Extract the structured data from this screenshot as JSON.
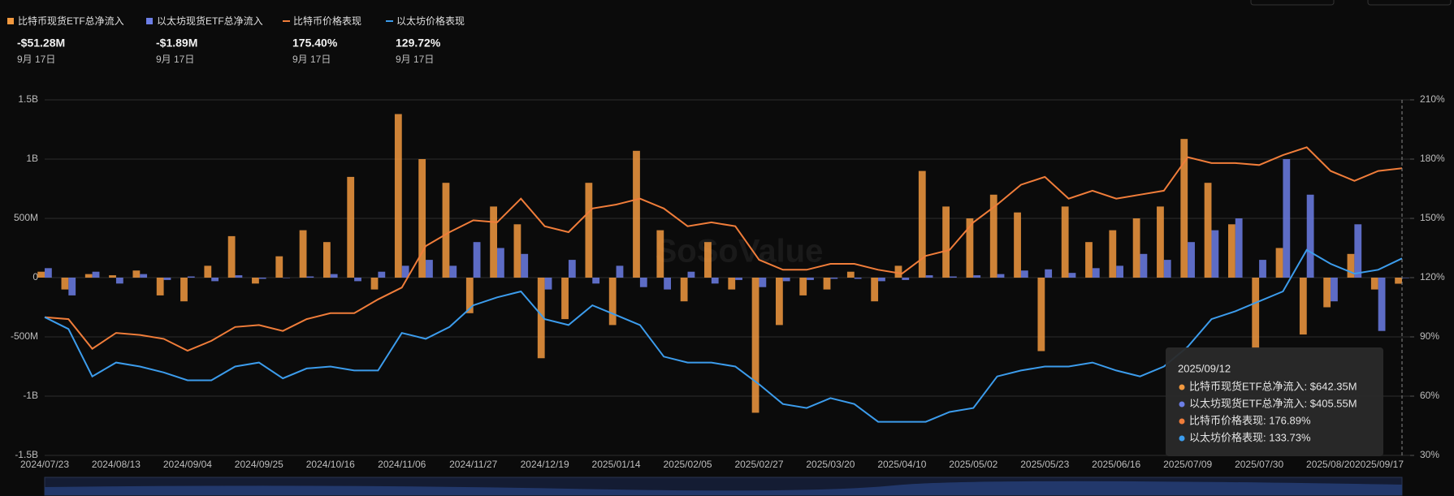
{
  "chart_data": {
    "type": "bar",
    "watermark": "SoSoValue",
    "categories": [
      "2024/07/23",
      null,
      null,
      "2024/08/13",
      null,
      null,
      "2024/09/04",
      null,
      null,
      "2024/09/25",
      null,
      null,
      "2024/10/16",
      null,
      null,
      "2024/11/06",
      null,
      null,
      "2024/11/27",
      null,
      null,
      "2024/12/19",
      null,
      null,
      "2025/01/14",
      null,
      null,
      "2025/02/05",
      null,
      null,
      "2025/02/27",
      null,
      null,
      "2025/03/20",
      null,
      null,
      "2025/04/10",
      null,
      null,
      "2025/05/02",
      null,
      null,
      "2025/05/23",
      null,
      null,
      "2025/06/16",
      null,
      null,
      "2025/07/09",
      null,
      null,
      "2025/07/30",
      null,
      null,
      "2025/08/20",
      null,
      null,
      "2025/09/17"
    ],
    "ylim": [
      -1500000000.0,
      1500000000.0
    ],
    "yticks": [
      {
        "value": 1500000000.0,
        "label": "1.5B"
      },
      {
        "value": 1000000000.0,
        "label": "1B"
      },
      {
        "value": 500000000.0,
        "label": "500M"
      },
      0,
      {
        "value": -500000000.0,
        "label": "-500M"
      },
      {
        "value": -1000000000.0,
        "label": "-1B"
      },
      {
        "value": -1500000000.0,
        "label": "-1.5B"
      }
    ],
    "y2lim": [
      30,
      210
    ],
    "y2ticks": [
      {
        "value": 210,
        "label": "210%"
      },
      {
        "value": 180,
        "label": "180%"
      },
      {
        "value": 150,
        "label": "150%"
      },
      {
        "value": 120,
        "label": "120%"
      },
      {
        "value": 90,
        "label": "90%"
      },
      {
        "value": 60,
        "label": "60%"
      },
      {
        "value": 30,
        "label": "30%"
      }
    ],
    "grid": true,
    "series": [
      {
        "name": "比特币现货ETF总净流入",
        "type": "bar",
        "color": "#f2993f",
        "values": [
          50000000.0,
          -100000000.0,
          30000000.0,
          20000000.0,
          60000000.0,
          -150000000.0,
          -200000000.0,
          100000000.0,
          350000000.0,
          -50000000.0,
          180000000.0,
          400000000.0,
          300000000.0,
          850000000.0,
          -100000000.0,
          1380000000.0,
          1000000000.0,
          800000000.0,
          -300000000.0,
          600000000.0,
          450000000.0,
          -680000000.0,
          -350000000.0,
          800000000.0,
          -400000000.0,
          1070000000.0,
          400000000.0,
          -200000000.0,
          300000000.0,
          -100000000.0,
          -1140000000.0,
          -400000000.0,
          -150000000.0,
          -100000000.0,
          50000000.0,
          -200000000.0,
          100000000.0,
          900000000.0,
          600000000.0,
          500000000.0,
          700000000.0,
          550000000.0,
          -620000000.0,
          600000000.0,
          300000000.0,
          400000000.0,
          500000000.0,
          600000000.0,
          1170000000.0,
          800000000.0,
          450000000.0,
          -600000000.0,
          250000000.0,
          -480000000.0,
          -250000000.0,
          200000000.0,
          -100000000.0,
          -51280000.0
        ]
      },
      {
        "name": "以太坊现货ETF总净流入",
        "type": "bar",
        "color": "#6c7ee6",
        "values": [
          80000000.0,
          -150000000.0,
          50000000.0,
          -50000000.0,
          30000000.0,
          -20000000.0,
          10000000.0,
          -30000000.0,
          20000000.0,
          -10000000.0,
          0,
          10000000.0,
          30000000.0,
          -30000000.0,
          50000000.0,
          100000000.0,
          150000000.0,
          100000000.0,
          300000000.0,
          250000000.0,
          200000000.0,
          -100000000.0,
          150000000.0,
          -50000000.0,
          100000000.0,
          -80000000.0,
          -100000000.0,
          50000000.0,
          -50000000.0,
          -20000000.0,
          -80000000.0,
          -30000000.0,
          -20000000.0,
          -10000000.0,
          -10000000.0,
          -30000000.0,
          -20000000.0,
          20000000.0,
          10000000.0,
          20000000.0,
          30000000.0,
          60000000.0,
          70000000.0,
          40000000.0,
          80000000.0,
          100000000.0,
          200000000.0,
          150000000.0,
          300000000.0,
          400000000.0,
          500000000.0,
          150000000.0,
          1000000000.0,
          700000000.0,
          -200000000.0,
          450000000.0,
          -450000000.0,
          -1890000.0
        ]
      },
      {
        "name": "比特币价格表现",
        "type": "line",
        "axis": "y2",
        "color": "#f07d3a",
        "values": [
          100,
          99,
          84,
          92,
          91,
          89,
          83,
          88,
          95,
          96,
          93,
          99,
          102,
          102,
          109,
          115,
          136,
          143,
          149,
          148,
          160,
          146,
          143,
          155,
          157,
          160,
          155,
          146,
          148,
          146,
          129,
          124,
          124,
          127,
          127,
          124,
          122,
          131,
          134,
          148,
          157,
          167,
          171,
          160,
          164,
          160,
          162,
          164,
          181,
          178,
          178,
          177,
          182,
          186,
          174,
          169,
          174,
          175.4
        ]
      },
      {
        "name": "以太坊价格表现",
        "type": "line",
        "axis": "y2",
        "color": "#3c9cec",
        "values": [
          100,
          94,
          70,
          77,
          75,
          72,
          68,
          68,
          75,
          77,
          69,
          74,
          75,
          73,
          73,
          92,
          89,
          95,
          106,
          110,
          113,
          99,
          96,
          106,
          101,
          96,
          80,
          77,
          77,
          75,
          66,
          56,
          54,
          59,
          56,
          47,
          47,
          47,
          52,
          54,
          70,
          73,
          75,
          75,
          77,
          73,
          70,
          75,
          85,
          99,
          103,
          108,
          113,
          134,
          127,
          122,
          124,
          129.72
        ]
      }
    ],
    "summary": [
      {
        "value": "-$51.28M",
        "date": "9月 17日"
      },
      {
        "value": "-$1.89M",
        "date": "9月 17日"
      },
      {
        "value": "175.40%",
        "date": "9月 17日"
      },
      {
        "value": "129.72%",
        "date": "9月 17日"
      }
    ],
    "tooltip": {
      "date": "2025/09/12",
      "lines": [
        "比特币现货ETF总净流入: $642.35M",
        "以太坊现货ETF总净流入: $405.55M",
        "比特币价格表现: 176.89%",
        "以太坊价格表现: 133.73%"
      ]
    }
  }
}
